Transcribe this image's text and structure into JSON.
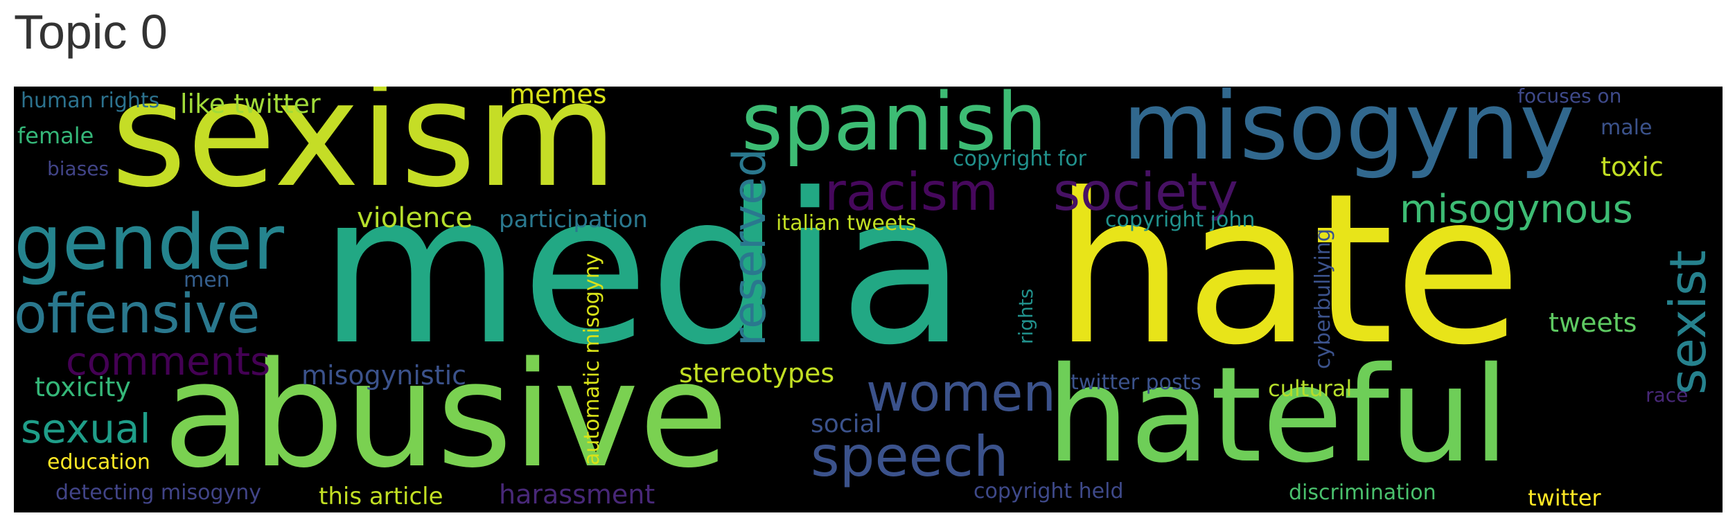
{
  "title": "Topic 0",
  "words": [
    {
      "text": "media",
      "color": "#22a884"
    },
    {
      "text": "hate",
      "color": "#e8e419"
    },
    {
      "text": "sexism",
      "color": "#c5dd26"
    },
    {
      "text": "abusive",
      "color": "#7ad151"
    },
    {
      "text": "hateful",
      "color": "#6ece58"
    },
    {
      "text": "misogyny",
      "color": "#31688e"
    },
    {
      "text": "spanish",
      "color": "#3dbc74"
    },
    {
      "text": "gender",
      "color": "#25848e"
    },
    {
      "text": "offensive",
      "color": "#2a788e"
    },
    {
      "text": "racism",
      "color": "#46085c"
    },
    {
      "text": "society",
      "color": "#471164"
    },
    {
      "text": "women",
      "color": "#3b528b"
    },
    {
      "text": "speech",
      "color": "#3b528b"
    },
    {
      "text": "comments",
      "color": "#440154"
    },
    {
      "text": "reserved",
      "color": "#2a788e"
    },
    {
      "text": "sexist",
      "color": "#26828e"
    },
    {
      "text": "misogynous",
      "color": "#3dbc74"
    },
    {
      "text": "sexual",
      "color": "#1f9e89"
    },
    {
      "text": "toxicity",
      "color": "#35b779"
    },
    {
      "text": "violence",
      "color": "#b5de2b"
    },
    {
      "text": "participation",
      "color": "#2a788e"
    },
    {
      "text": "like twitter",
      "color": "#a0da39"
    },
    {
      "text": "memes",
      "color": "#d8e219"
    },
    {
      "text": "human rights",
      "color": "#2c728e"
    },
    {
      "text": "female",
      "color": "#35b779"
    },
    {
      "text": "biases",
      "color": "#414487"
    },
    {
      "text": "men",
      "color": "#355f8d"
    },
    {
      "text": "misogynistic",
      "color": "#3b528b"
    },
    {
      "text": "stereotypes",
      "color": "#c2df23"
    },
    {
      "text": "automatic misogyny",
      "color": "#d8e219"
    },
    {
      "text": "italian tweets",
      "color": "#c2df23"
    },
    {
      "text": "copyright for",
      "color": "#21918c"
    },
    {
      "text": "copyright john",
      "color": "#21918c"
    },
    {
      "text": "rights",
      "color": "#21918c"
    },
    {
      "text": "cyberbullying",
      "color": "#3b528b"
    },
    {
      "text": "twitter posts",
      "color": "#3b528b"
    },
    {
      "text": "cultural",
      "color": "#b5de2b"
    },
    {
      "text": "social",
      "color": "#3b528b"
    },
    {
      "text": "education",
      "color": "#fde725"
    },
    {
      "text": "detecting misogyny",
      "color": "#414487"
    },
    {
      "text": "this article",
      "color": "#c2df23"
    },
    {
      "text": "harassment",
      "color": "#482878"
    },
    {
      "text": "copyright held",
      "color": "#3e4989"
    },
    {
      "text": "discrimination",
      "color": "#4ac16d"
    },
    {
      "text": "twitter",
      "color": "#fde725"
    },
    {
      "text": "focuses on",
      "color": "#3e4989"
    },
    {
      "text": "male",
      "color": "#3b528b"
    },
    {
      "text": "toxic",
      "color": "#c2df23"
    },
    {
      "text": "tweets",
      "color": "#5ec962"
    },
    {
      "text": "race",
      "color": "#482878"
    }
  ]
}
